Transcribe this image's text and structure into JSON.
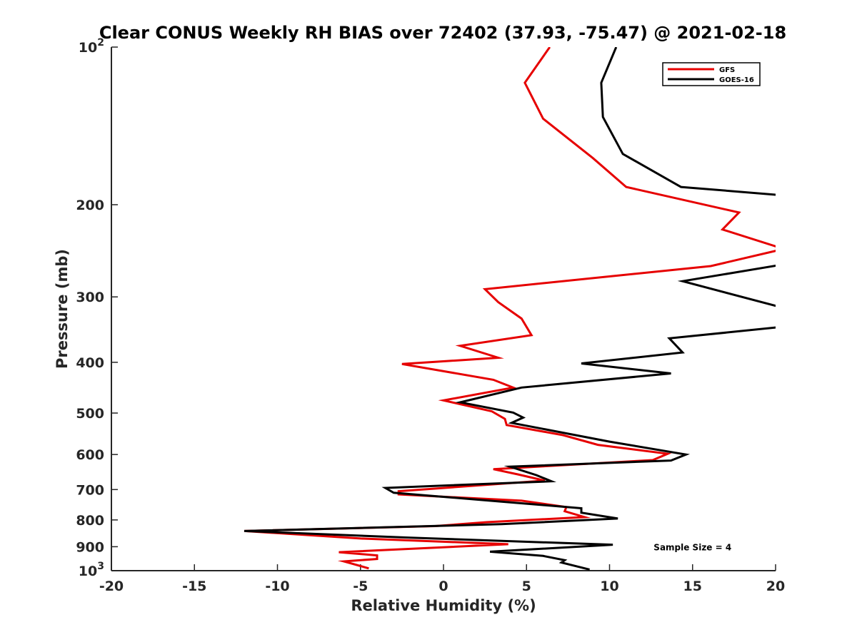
{
  "chart_data": {
    "type": "line",
    "title": "Clear CONUS Weekly RH BIAS over 72402 (37.93, -75.47) @ 2021-02-18",
    "xlabel": "Relative Humidity (%)",
    "ylabel": "Pressure (mb)",
    "xlim": [
      -20,
      20
    ],
    "ylim": [
      100,
      1000
    ],
    "yscale": "log",
    "y_reversed": true,
    "grid": false,
    "legend_position": "top-right",
    "x_ticks": [
      -20,
      -15,
      -10,
      -5,
      0,
      5,
      10,
      15,
      20
    ],
    "x_tick_labels": [
      "-20",
      "-15",
      "-10",
      "-5",
      "0",
      "5",
      "10",
      "15",
      "20"
    ],
    "y_ticks": [
      {
        "value": 100,
        "base": "10",
        "exp": "2"
      },
      {
        "value": 200,
        "label": "200"
      },
      {
        "value": 300,
        "label": "300"
      },
      {
        "value": 400,
        "label": "400"
      },
      {
        "value": 500,
        "label": "500"
      },
      {
        "value": 600,
        "label": "600"
      },
      {
        "value": 700,
        "label": "700"
      },
      {
        "value": 800,
        "label": "800"
      },
      {
        "value": 900,
        "label": "900"
      },
      {
        "value": 1000,
        "base": "10",
        "exp": "3"
      }
    ],
    "series": [
      {
        "name": "GFS",
        "color": "#e60000",
        "points": [
          [
            6.4,
            100
          ],
          [
            4.9,
            117
          ],
          [
            6.0,
            137
          ],
          [
            9.0,
            163
          ],
          [
            11.0,
            185
          ],
          [
            17.8,
            207
          ],
          [
            16.8,
            223
          ],
          [
            20.5,
            243
          ],
          [
            16.1,
            262
          ],
          [
            2.5,
            290
          ],
          [
            3.3,
            307
          ],
          [
            4.7,
            330
          ],
          [
            5.3,
            355
          ],
          [
            1.0,
            372
          ],
          [
            3.3,
            392
          ],
          [
            -2.5,
            403
          ],
          [
            3.0,
            432
          ],
          [
            4.2,
            447
          ],
          [
            0.0,
            473
          ],
          [
            2.9,
            496
          ],
          [
            3.7,
            513
          ],
          [
            3.8,
            527
          ],
          [
            7.2,
            551
          ],
          [
            9.3,
            575
          ],
          [
            13.5,
            598
          ],
          [
            12.6,
            615
          ],
          [
            3.0,
            640
          ],
          [
            4.5,
            655
          ],
          [
            6.1,
            673
          ],
          [
            -2.7,
            705
          ],
          [
            -2.7,
            715
          ],
          [
            4.7,
            735
          ],
          [
            7.4,
            756
          ],
          [
            7.3,
            770
          ],
          [
            8.5,
            790
          ],
          [
            2.6,
            808
          ],
          [
            -0.5,
            822
          ],
          [
            -12.0,
            840
          ],
          [
            -5.0,
            868
          ],
          [
            3.9,
            890
          ],
          [
            -6.3,
            922
          ],
          [
            -4.0,
            935
          ],
          [
            -4.0,
            950
          ],
          [
            -6.0,
            960
          ],
          [
            -4.5,
            990
          ]
        ]
      },
      {
        "name": "GOES-16",
        "color": "#000000",
        "points": [
          [
            10.4,
            100
          ],
          [
            9.5,
            117
          ],
          [
            9.6,
            136
          ],
          [
            10.8,
            160
          ],
          [
            14.3,
            185
          ],
          [
            20.5,
            192
          ],
          [
            20.5,
            260
          ],
          [
            14.4,
            280
          ],
          [
            20.5,
            315
          ],
          [
            20.5,
            342
          ],
          [
            13.6,
            360
          ],
          [
            14.4,
            383
          ],
          [
            8.3,
            402
          ],
          [
            13.7,
            420
          ],
          [
            4.7,
            447
          ],
          [
            1.0,
            477
          ],
          [
            4.2,
            499
          ],
          [
            4.8,
            510
          ],
          [
            4.1,
            522
          ],
          [
            10.0,
            567
          ],
          [
            14.6,
            600
          ],
          [
            13.7,
            616
          ],
          [
            4.0,
            633
          ],
          [
            5.6,
            657
          ],
          [
            6.5,
            675
          ],
          [
            -3.5,
            695
          ],
          [
            -3.0,
            710
          ],
          [
            3.5,
            738
          ],
          [
            8.3,
            760
          ],
          [
            8.3,
            775
          ],
          [
            10.5,
            795
          ],
          [
            3.5,
            815
          ],
          [
            -12.0,
            840
          ],
          [
            -2.0,
            865
          ],
          [
            10.2,
            892
          ],
          [
            2.8,
            920
          ],
          [
            6.0,
            937
          ],
          [
            7.3,
            955
          ],
          [
            7.1,
            965
          ],
          [
            8.8,
            995
          ]
        ]
      }
    ],
    "annotations": [
      {
        "text": "Sample Size = 4",
        "x": 15,
        "y": 900
      }
    ]
  }
}
